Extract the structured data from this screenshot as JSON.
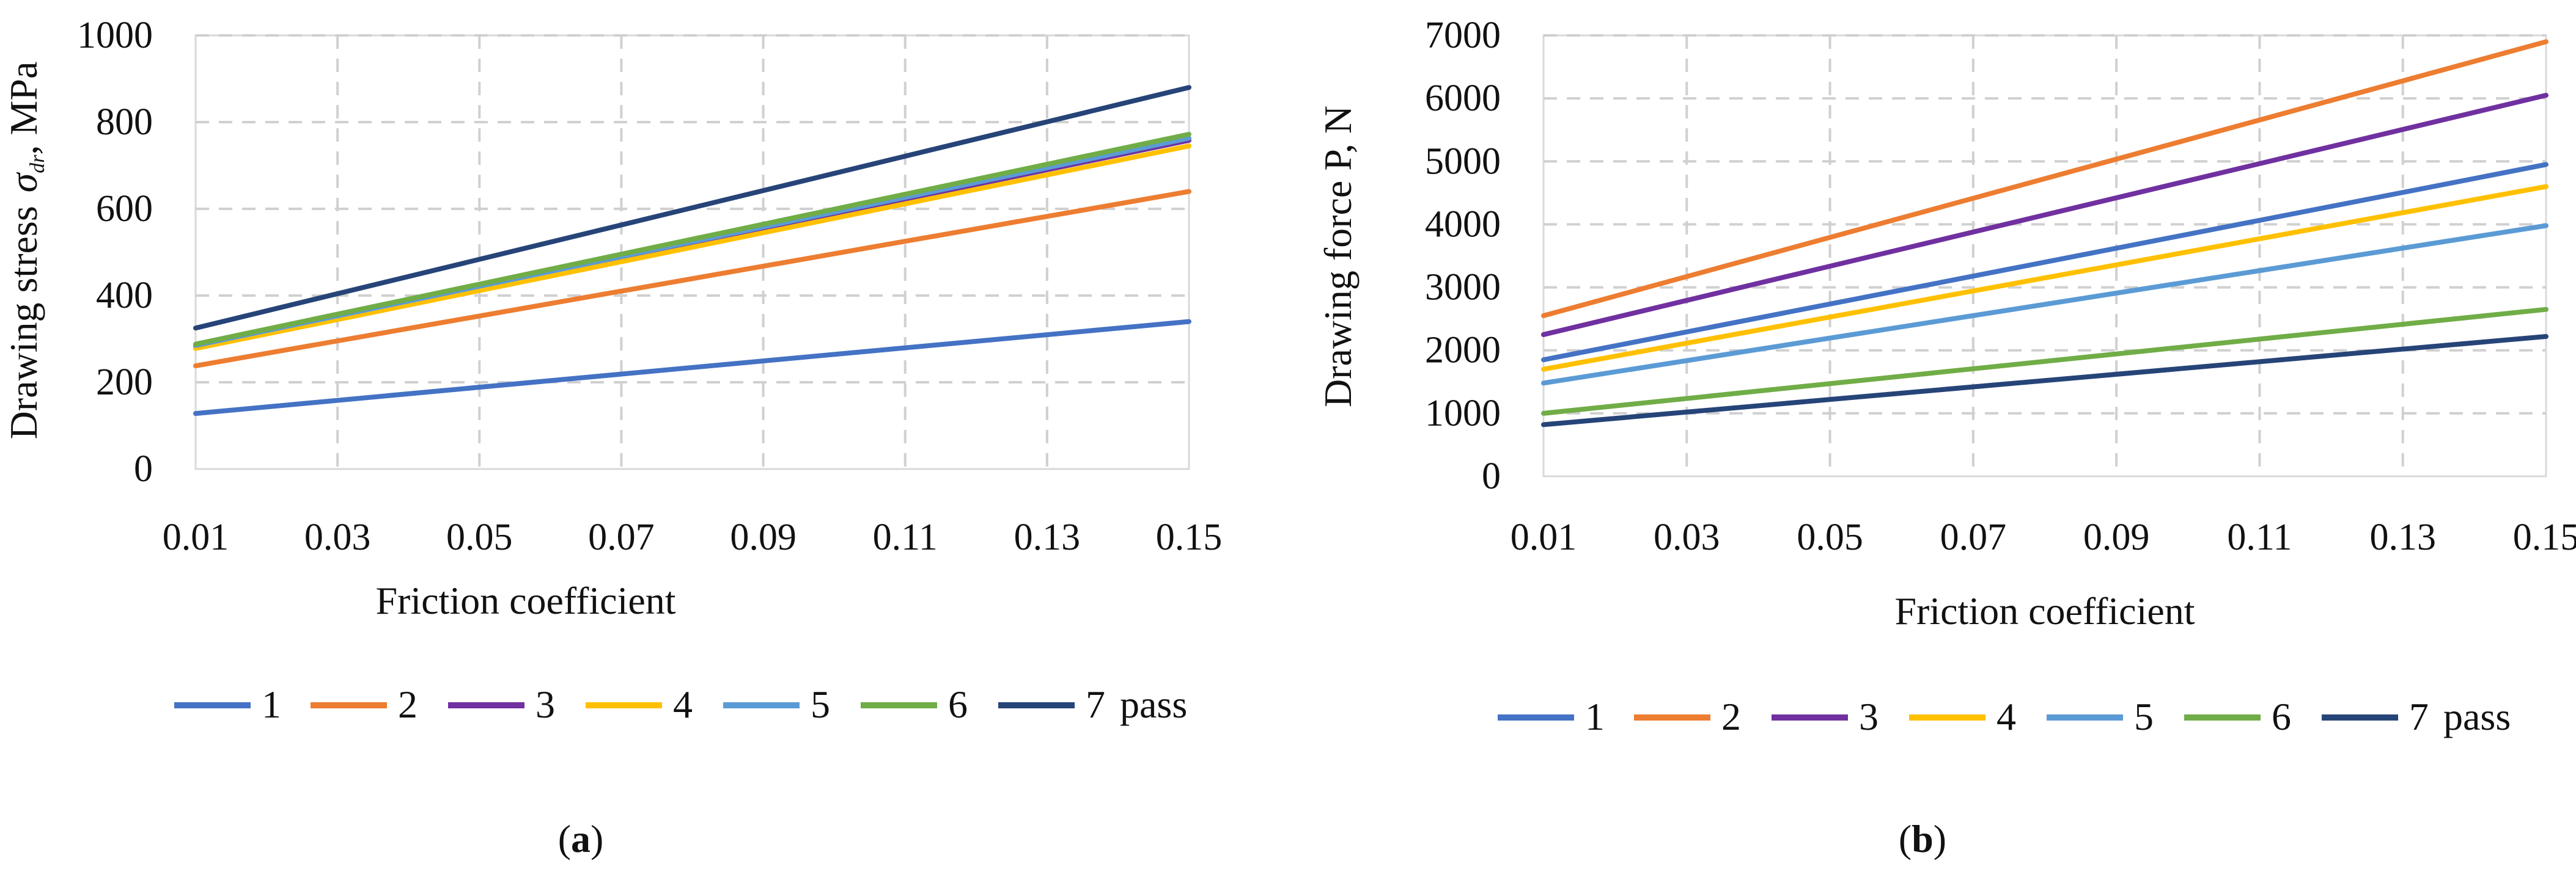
{
  "chart_data": [
    {
      "type": "line",
      "panel": "a",
      "panel_label": "(a)",
      "panel_letter": "a",
      "xlabel": "Friction coefficient",
      "ylabel": "Drawing stress σdr, MPa",
      "ylabel_text": "Drawing stress",
      "ylabel_symbol": "σ",
      "ylabel_subscript": "dr",
      "ylabel_unit": ", MPa",
      "xlim": [
        0.01,
        0.15
      ],
      "ylim": [
        0,
        1000
      ],
      "x_ticks": [
        "0.01",
        "0.03",
        "0.05",
        "0.07",
        "0.09",
        "0.11",
        "0.13",
        "0.15"
      ],
      "y_ticks": [
        "0",
        "200",
        "400",
        "600",
        "800",
        "1000"
      ],
      "grid": true,
      "legend_position": "bottom",
      "legend_suffix": "pass",
      "x": [
        0.01,
        0.15
      ],
      "series": [
        {
          "name": "1",
          "values": [
            128,
            340
          ],
          "color": "#4472C4"
        },
        {
          "name": "2",
          "values": [
            238,
            640
          ],
          "color": "#ED7D31"
        },
        {
          "name": "3",
          "values": [
            283,
            758
          ],
          "color": "#7030A0"
        },
        {
          "name": "4",
          "values": [
            278,
            745
          ],
          "color": "#FFC000"
        },
        {
          "name": "5",
          "values": [
            285,
            763
          ],
          "color": "#5B9BD5"
        },
        {
          "name": "6",
          "values": [
            288,
            772
          ],
          "color": "#70AD47"
        },
        {
          "name": "7",
          "values": [
            325,
            880
          ],
          "color": "#264478"
        }
      ]
    },
    {
      "type": "line",
      "panel": "b",
      "panel_label": "(b)",
      "panel_letter": "b",
      "xlabel": "Friction coefficient",
      "ylabel": "Drawing force  P, N",
      "ylabel_text": "Drawing force  P, N",
      "xlim": [
        0.01,
        0.15
      ],
      "ylim": [
        0,
        7000
      ],
      "x_ticks": [
        "0.01",
        "0.03",
        "0.05",
        "0.07",
        "0.09",
        "0.11",
        "0.13",
        "0.15"
      ],
      "y_ticks": [
        "0",
        "1000",
        "2000",
        "3000",
        "4000",
        "5000",
        "6000",
        "7000"
      ],
      "grid": true,
      "legend_position": "bottom",
      "legend_suffix": "pass",
      "x": [
        0.01,
        0.15
      ],
      "series": [
        {
          "name": "1",
          "values": [
            1850,
            4950
          ],
          "color": "#4472C4"
        },
        {
          "name": "2",
          "values": [
            2550,
            6900
          ],
          "color": "#ED7D31"
        },
        {
          "name": "3",
          "values": [
            2250,
            6050
          ],
          "color": "#7030A0"
        },
        {
          "name": "4",
          "values": [
            1700,
            4600
          ],
          "color": "#FFC000"
        },
        {
          "name": "5",
          "values": [
            1480,
            3980
          ],
          "color": "#5B9BD5"
        },
        {
          "name": "6",
          "values": [
            1000,
            2650
          ],
          "color": "#70AD47"
        },
        {
          "name": "7",
          "values": [
            820,
            2220
          ],
          "color": "#264478"
        }
      ]
    }
  ]
}
